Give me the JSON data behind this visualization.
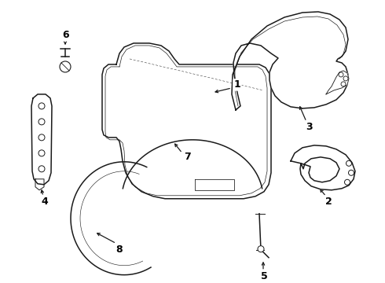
{
  "bg_color": "#ffffff",
  "line_color": "#1a1a1a",
  "label_color": "#000000",
  "figsize": [
    4.9,
    3.6
  ],
  "dpi": 100
}
